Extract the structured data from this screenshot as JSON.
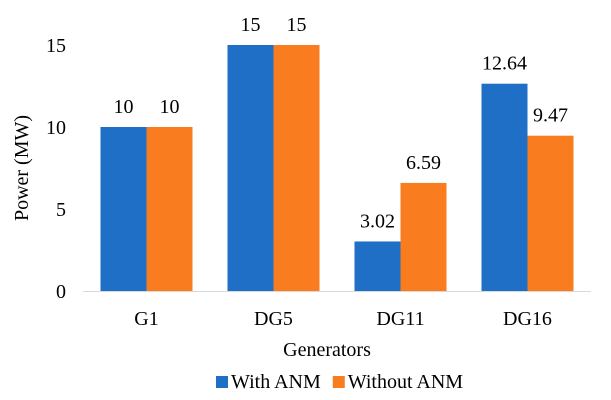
{
  "chart_data": {
    "type": "bar",
    "categories": [
      "G1",
      "DG5",
      "DG11",
      "DG16"
    ],
    "series": [
      {
        "name": "With ANM",
        "values": [
          10,
          15,
          3.02,
          12.64
        ],
        "labels": [
          "10",
          "15",
          "3.02",
          "12.64"
        ],
        "color": "#1F6FC6"
      },
      {
        "name": "Without ANM",
        "values": [
          10,
          15,
          6.59,
          9.47
        ],
        "labels": [
          "10",
          "15",
          "6.59",
          "9.47"
        ],
        "color": "#F97D1F"
      }
    ],
    "xlabel": "Generators",
    "ylabel": "Power (MW)",
    "ylim": [
      0,
      15
    ],
    "yticks": [
      0,
      5,
      10,
      15
    ],
    "grid": false,
    "legend": "bottom"
  }
}
